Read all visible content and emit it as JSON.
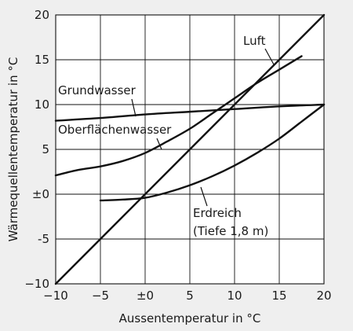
{
  "chart_data": {
    "type": "line",
    "xlabel": "Aussentemperatur in °C",
    "ylabel": "Wärmequellentemperatur in °C",
    "xlim": [
      -10,
      20
    ],
    "ylim": [
      -10,
      20
    ],
    "grid": true,
    "x_ticks": [
      -10,
      -5,
      0,
      5,
      10,
      15,
      20
    ],
    "x_tick_labels": [
      "−10",
      "−5",
      "±0",
      "5",
      "10",
      "15",
      "20"
    ],
    "y_ticks": [
      -10,
      -5,
      0,
      5,
      10,
      15,
      20
    ],
    "y_tick_labels": [
      "−10",
      "-5",
      "±0",
      "5",
      "10",
      "15",
      "20"
    ],
    "series": [
      {
        "name": "Luft",
        "points": [
          [
            -10,
            -10
          ],
          [
            20,
            20
          ]
        ]
      },
      {
        "name": "Grundwasser",
        "points": [
          [
            -10,
            8.2
          ],
          [
            -5,
            8.5
          ],
          [
            0,
            8.9
          ],
          [
            5,
            9.2
          ],
          [
            10,
            9.5
          ],
          [
            15,
            9.8
          ],
          [
            20,
            10
          ]
        ]
      },
      {
        "name": "Oberflächenwasser",
        "points": [
          [
            -10,
            2.1
          ],
          [
            -7.5,
            2.7
          ],
          [
            -5,
            3.1
          ],
          [
            -2.5,
            3.7
          ],
          [
            0,
            4.6
          ],
          [
            2.5,
            5.9
          ],
          [
            5,
            7.3
          ],
          [
            7.5,
            9.0
          ],
          [
            10,
            10.7
          ],
          [
            12.5,
            12.4
          ],
          [
            15,
            13.9
          ],
          [
            17.5,
            15.4
          ]
        ]
      },
      {
        "name": "Erdreich (Tiefe 1,8 m)",
        "points": [
          [
            -5,
            -0.7
          ],
          [
            -2.5,
            -0.6
          ],
          [
            0,
            -0.4
          ],
          [
            2.5,
            0.2
          ],
          [
            5,
            1.0
          ],
          [
            7.5,
            2.0
          ],
          [
            10,
            3.2
          ],
          [
            12.5,
            4.6
          ],
          [
            15,
            6.2
          ],
          [
            17.5,
            8.1
          ],
          [
            20,
            10
          ]
        ]
      }
    ],
    "annotations": {
      "luft": "Luft",
      "grundwasser": "Grundwasser",
      "oberflaechenwasser": "Oberflächenwasser",
      "erdreich_line1": "Erdreich",
      "erdreich_line2": "(Tiefe 1,8 m)"
    }
  }
}
